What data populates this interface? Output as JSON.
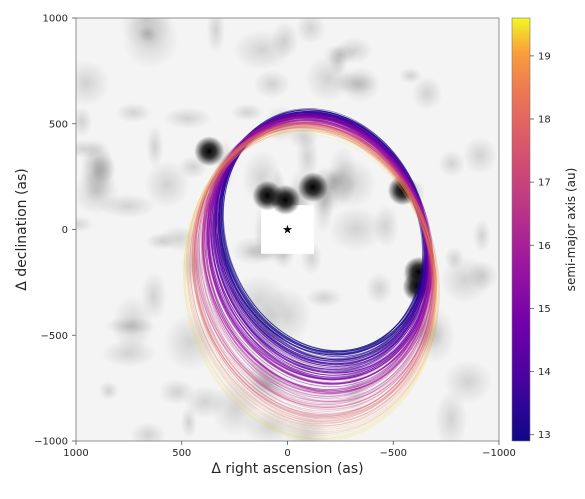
{
  "chart_data": {
    "type": "scatter",
    "title": "",
    "xlabel": "Δ right ascension (as)",
    "ylabel": "Δ declination (as)",
    "xlim": [
      1000,
      -1000
    ],
    "ylim": [
      -1000,
      1000
    ],
    "x_ticks": [
      1000,
      500,
      0,
      -500,
      -1000
    ],
    "y_ticks": [
      1000,
      500,
      0,
      -500,
      -1000
    ],
    "x_tick_labels": [
      "1000",
      "500",
      "0",
      "−500",
      "−1000"
    ],
    "y_tick_labels": [
      "1000",
      "500",
      "0",
      "−500",
      "−1000"
    ],
    "grid": false,
    "background": "grayscale residual image with central square mask",
    "star": {
      "x": 0,
      "y": 0,
      "marker": "★"
    },
    "dark_sources": [
      {
        "x": 370,
        "y": 370
      },
      {
        "x": 10,
        "y": 140
      },
      {
        "x": -120,
        "y": 200
      },
      {
        "x": 95,
        "y": 160
      },
      {
        "x": -545,
        "y": 185
      },
      {
        "x": -620,
        "y": -200
      },
      {
        "x": -615,
        "y": -270
      }
    ],
    "orbits": {
      "count": 150,
      "color_by": "semi-major axis (au)",
      "colorscale": "plasma",
      "semi_major_axis_range": [
        12.9,
        19.6
      ],
      "convergence_points": [
        {
          "x": 370,
          "y": 370
        },
        {
          "x": -620,
          "y": -200
        },
        {
          "x": -545,
          "y": 185
        }
      ]
    },
    "colorbar": {
      "label": "semi-major axis (au)",
      "range": [
        12.9,
        19.6
      ],
      "ticks": [
        13,
        14,
        15,
        16,
        17,
        18,
        19
      ],
      "tick_labels": [
        "13",
        "14",
        "15",
        "16",
        "17",
        "18",
        "19"
      ]
    }
  }
}
